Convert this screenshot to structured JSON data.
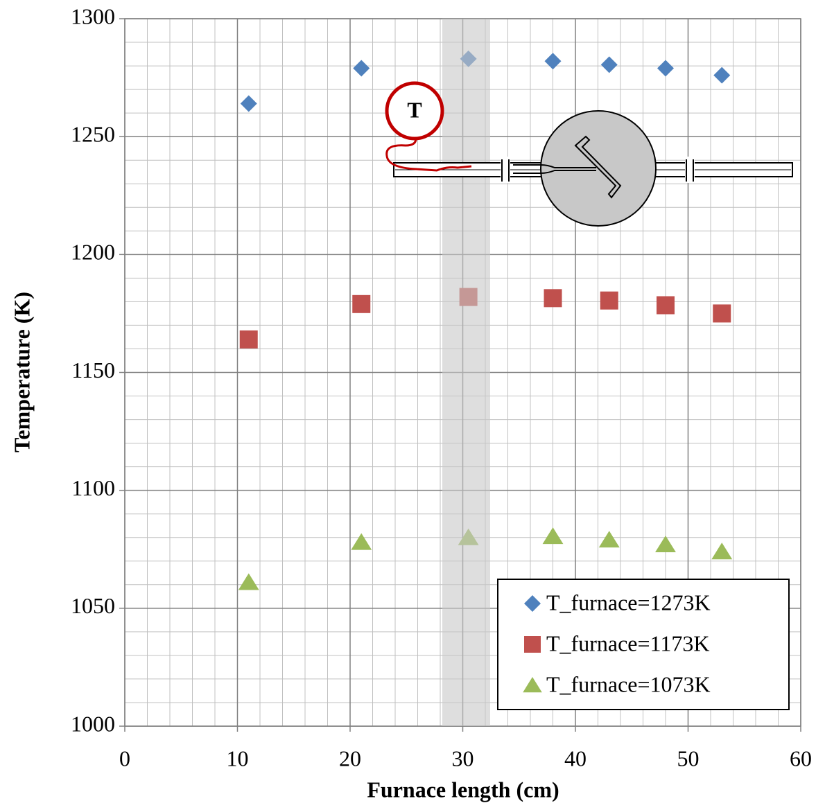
{
  "chart_data": {
    "type": "scatter",
    "x_label": "Furnace length (cm)",
    "y_label": "Temperature (K)",
    "annotation": "T",
    "x": [
      11,
      21,
      30.5,
      38,
      43,
      48,
      53
    ],
    "series": [
      {
        "name": "T_furnace=1273K",
        "color": "#4f81bd",
        "marker": "diamond",
        "values": [
          1264,
          1279,
          1283,
          1282,
          1280.5,
          1279,
          1276
        ]
      },
      {
        "name": "T_furnace=1173K",
        "color": "#c0504d",
        "marker": "square",
        "values": [
          1164,
          1179,
          1182,
          1181.5,
          1180.5,
          1178.5,
          1175
        ]
      },
      {
        "name": "T_furnace=1073K",
        "color": "#9bbb59",
        "marker": "triangle",
        "values": [
          1061,
          1078,
          1080,
          1080.5,
          1079,
          1077,
          1074
        ]
      }
    ],
    "xlim": [
      0,
      60
    ],
    "xticks": [
      0,
      10,
      20,
      30,
      40,
      50,
      60
    ],
    "ylim": [
      1000,
      1300
    ],
    "yticks": [
      1000,
      1050,
      1100,
      1150,
      1200,
      1250,
      1300
    ],
    "grid": true,
    "legend": "lower right"
  }
}
